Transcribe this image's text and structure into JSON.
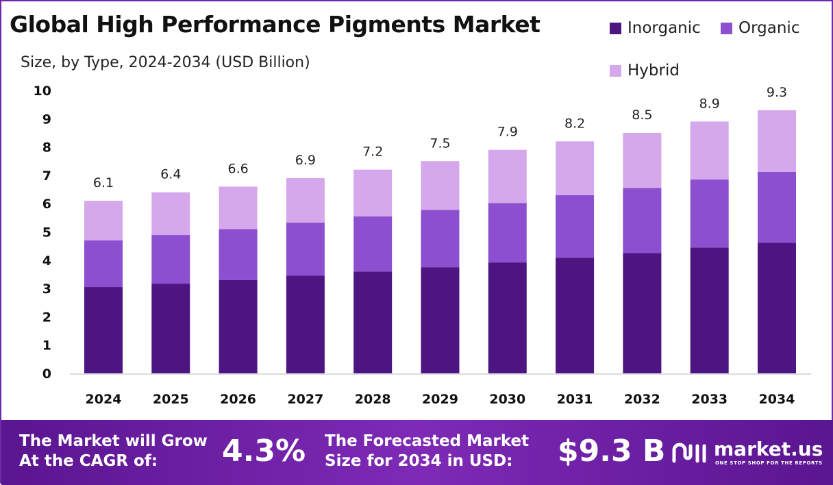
{
  "title": "Global High Performance Pigments Market",
  "subtitle": "Size, by Type, 2024-2034 (USD Billion)",
  "legend": [
    {
      "label": "Inorganic",
      "color": "#4d1582"
    },
    {
      "label": "Organic",
      "color": "#8b4fd0"
    },
    {
      "label": "Hybrid",
      "color": "#d4a8ea"
    }
  ],
  "chart_data": {
    "type": "bar",
    "stacked": true,
    "categories": [
      "2024",
      "2025",
      "2026",
      "2027",
      "2028",
      "2029",
      "2030",
      "2031",
      "2032",
      "2033",
      "2034"
    ],
    "series": [
      {
        "name": "Inorganic",
        "color": "#4d1582",
        "values": [
          3.05,
          3.17,
          3.3,
          3.45,
          3.6,
          3.75,
          3.92,
          4.08,
          4.25,
          4.45,
          4.62
        ]
      },
      {
        "name": "Organic",
        "color": "#8b4fd0",
        "values": [
          1.65,
          1.72,
          1.8,
          1.88,
          1.95,
          2.03,
          2.1,
          2.22,
          2.3,
          2.4,
          2.5
        ]
      },
      {
        "name": "Hybrid",
        "color": "#d4a8ea",
        "values": [
          1.4,
          1.51,
          1.5,
          1.57,
          1.65,
          1.72,
          1.88,
          1.9,
          1.95,
          2.05,
          2.18
        ]
      }
    ],
    "totals": [
      "6.1",
      "6.4",
      "6.6",
      "6.9",
      "7.2",
      "7.5",
      "7.9",
      "8.2",
      "8.5",
      "8.9",
      "9.3"
    ],
    "ylim": [
      0,
      10
    ],
    "yticks": [
      "0",
      "1",
      "2",
      "3",
      "4",
      "5",
      "6",
      "7",
      "8",
      "9",
      "10"
    ],
    "grid": false,
    "legend_position": "top-right"
  },
  "footer": {
    "cagr_label_line1": "The Market will Grow",
    "cagr_label_line2": "At the CAGR of:",
    "cagr_value": "4.3%",
    "forecast_label_line1": "The Forecasted Market",
    "forecast_label_line2": "Size for 2034 in USD:",
    "forecast_value": "$9.3 B",
    "brand_name": "market.us",
    "brand_tagline": "ONE STOP SHOP FOR THE REPORTS"
  }
}
